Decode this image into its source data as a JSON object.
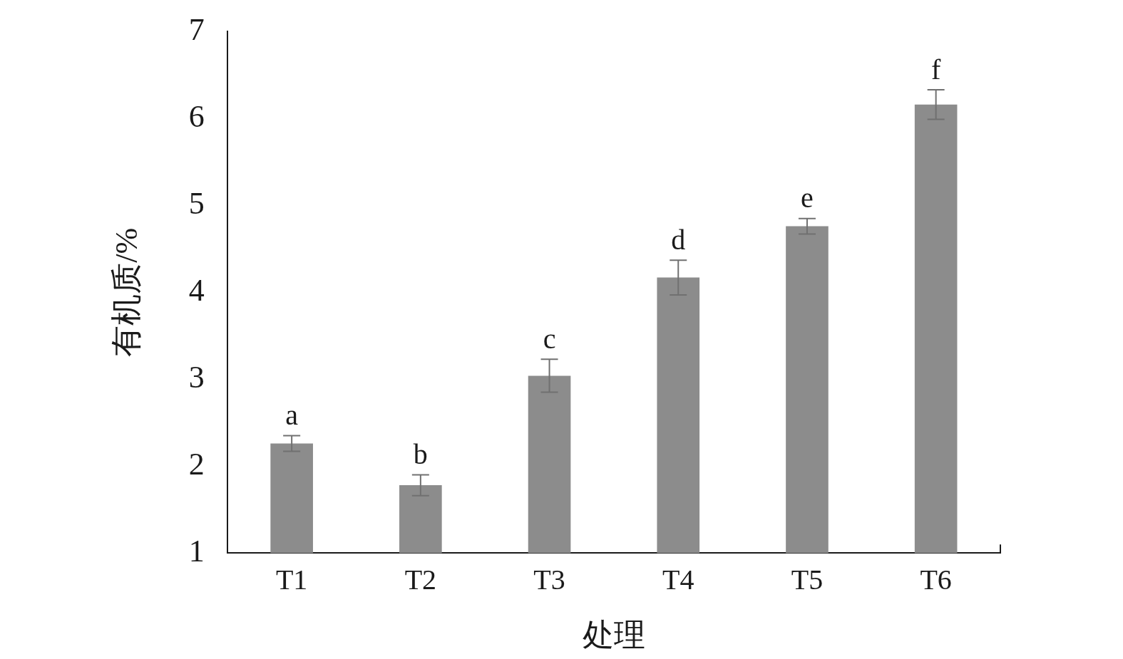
{
  "chart_data": {
    "type": "bar",
    "xlabel": "处理",
    "ylabel": "有机质/%",
    "categories": [
      "T1",
      "T2",
      "T3",
      "T4",
      "T5",
      "T6"
    ],
    "values": [
      2.26,
      1.78,
      3.04,
      4.17,
      4.76,
      6.16
    ],
    "errors": [
      0.09,
      0.12,
      0.19,
      0.2,
      0.09,
      0.17
    ],
    "color": "#8c8c8c",
    "ylim": [
      1,
      7
    ],
    "yticks": [
      1,
      2,
      3,
      4,
      5,
      6,
      7
    ],
    "grid": false,
    "legend": false,
    "annotations": [
      {
        "text": "a",
        "x": "T1",
        "y": 2.35
      },
      {
        "text": "b",
        "x": "T2",
        "y": 1.9
      },
      {
        "text": "c",
        "x": "T3",
        "y": 3.23
      },
      {
        "text": "d",
        "x": "T4",
        "y": 4.37
      },
      {
        "text": "e",
        "x": "T5",
        "y": 4.85
      },
      {
        "text": "f",
        "x": "T6",
        "y": 6.33
      }
    ]
  }
}
